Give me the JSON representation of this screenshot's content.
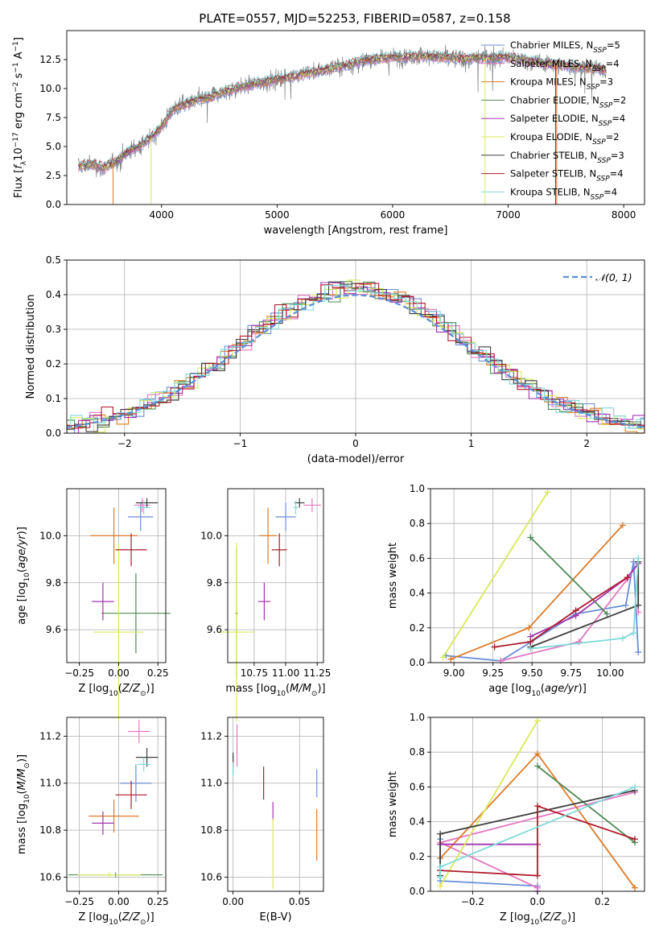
{
  "figure": {
    "title": "PLATE=0557, MJD=52253, FIBERID=0587, z=0.158"
  },
  "colors": {
    "Chabrier MILES": "#6a8fd6",
    "Salpeter MILES": "#e377c2",
    "Kroupa MILES": "#dd7a28",
    "Chabrier ELODIE": "#4e8a55",
    "Salpeter ELODIE": "#a335b0",
    "Kroupa ELODIE": "#d9e85a",
    "Chabrier STELIB": "#3f3f3f",
    "Salpeter STELIB": "#b0182a",
    "Kroupa STELIB": "#7fd9d9",
    "data_gray": "#7f7f7f",
    "normal_curve": "#5b8fd6",
    "grid": "#b0b0b0"
  },
  "chart_data": [
    {
      "id": "spectrum",
      "type": "line",
      "title": "PLATE=0557, MJD=52253, FIBERID=0587, z=0.158",
      "xlabel": "wavelength [Angstrom, rest frame]",
      "ylabel": "Flux [f_λ 10^-17 erg cm^-2 s^-1 A^-1]",
      "xlim": [
        3180,
        8180
      ],
      "ylim": [
        0,
        15
      ],
      "xticks": [
        4000,
        5000,
        6000,
        7000,
        8000
      ],
      "yticks": [
        0.0,
        2.5,
        5.0,
        7.5,
        10.0,
        12.5
      ],
      "ytick_labels": [
        "0.0",
        "2.5",
        "5.0",
        "7.5",
        "10.0",
        "12.5"
      ],
      "grid": false,
      "legend_position": "top-right",
      "continuum": {
        "x": [
          3300,
          3400,
          3500,
          3600,
          3700,
          3800,
          3900,
          4000,
          4100,
          4200,
          4300,
          4400,
          4600,
          4800,
          5000,
          5200,
          5500,
          5800,
          6000,
          6300,
          6600,
          7000,
          7300,
          7600,
          7850
        ],
        "y": [
          3.3,
          3.5,
          3.1,
          3.7,
          4.5,
          5.0,
          5.7,
          6.7,
          8.2,
          8.6,
          9.0,
          9.2,
          9.9,
          10.4,
          10.8,
          11.2,
          11.8,
          12.5,
          12.7,
          12.8,
          12.6,
          12.7,
          12.2,
          11.9,
          11.6
        ]
      },
      "legend": [
        {
          "name": "Chabrier MILES",
          "nssp": "5"
        },
        {
          "name": "Salpeter MILES",
          "nssp": "4"
        },
        {
          "name": "Kroupa MILES",
          "nssp": "3"
        },
        {
          "name": "Chabrier ELODIE",
          "nssp": "2"
        },
        {
          "name": "Salpeter ELODIE",
          "nssp": "4"
        },
        {
          "name": "Kroupa ELODIE",
          "nssp": "2"
        },
        {
          "name": "Chabrier STELIB",
          "nssp": "3"
        },
        {
          "name": "Salpeter STELIB",
          "nssp": "4"
        },
        {
          "name": "Kroupa STELIB",
          "nssp": "4"
        }
      ]
    },
    {
      "id": "residuals",
      "type": "histogram",
      "xlabel": "(data-model)/error",
      "ylabel": "Normed distribution",
      "xlim": [
        -2.5,
        2.5
      ],
      "ylim": [
        0,
        0.5
      ],
      "xticks": [
        -2,
        -1,
        0,
        1,
        2
      ],
      "xtick_labels": [
        "−2",
        "−1",
        "0",
        "1",
        "2"
      ],
      "yticks": [
        0.0,
        0.1,
        0.2,
        0.3,
        0.4,
        0.5
      ],
      "ytick_labels": [
        "0.0",
        "0.1",
        "0.2",
        "0.3",
        "0.4",
        "0.5"
      ],
      "grid": true,
      "bin_width": 0.1,
      "legend": [
        {
          "name": "𝒩(0, 1)"
        }
      ],
      "legend_position": "top-right"
    },
    {
      "id": "z-age",
      "type": "scatter",
      "xlabel": "Z [log10(Z/Z⊙)]",
      "ylabel": "age  [log10(age/yr)]",
      "xlim": [
        -0.33,
        0.3
      ],
      "ylim": [
        9.46,
        10.2
      ],
      "xticks": [
        -0.25,
        0.0,
        0.25
      ],
      "xtick_labels": [
        "−0.25",
        "0.00",
        "0.25"
      ],
      "yticks": [
        9.6,
        9.8,
        10.0
      ],
      "ytick_labels": [
        "9.6",
        "9.8",
        "10.0"
      ],
      "grid": true,
      "points": [
        {
          "series": "Chabrier MILES",
          "x": 0.14,
          "xerr": 0.08,
          "y": 10.08,
          "yerr": 0.06
        },
        {
          "series": "Salpeter MILES",
          "x": 0.15,
          "xerr": 0.05,
          "y": 10.13,
          "yerr": 0.03
        },
        {
          "series": "Kroupa MILES",
          "x": -0.03,
          "xerr": 0.15,
          "y": 10.0,
          "yerr": 0.12
        },
        {
          "series": "Chabrier ELODIE",
          "x": 0.11,
          "xerr": 0.22,
          "y": 9.67,
          "yerr": 0.17
        },
        {
          "series": "Salpeter ELODIE",
          "x": -0.1,
          "xerr": 0.07,
          "y": 9.72,
          "yerr": 0.08
        },
        {
          "series": "Kroupa ELODIE",
          "x": 0.0,
          "xerr": 0.16,
          "y": 9.59,
          "yerr": 0.38
        },
        {
          "series": "Chabrier STELIB",
          "x": 0.18,
          "xerr": 0.07,
          "y": 10.14,
          "yerr": 0.02
        },
        {
          "series": "Salpeter STELIB",
          "x": 0.08,
          "xerr": 0.1,
          "y": 9.94,
          "yerr": 0.07
        },
        {
          "series": "Kroupa STELIB",
          "x": 0.16,
          "xerr": 0.04,
          "y": 10.12,
          "yerr": 0.03
        }
      ]
    },
    {
      "id": "mass-age",
      "type": "scatter",
      "xlabel": "mass [log10(M/M⊙)]",
      "ylabel": "",
      "xlim": [
        10.54,
        11.3
      ],
      "ylim": [
        9.46,
        10.2
      ],
      "xticks": [
        10.75,
        11.0,
        11.25
      ],
      "xtick_labels": [
        "10.75",
        "11.00",
        "11.25"
      ],
      "yticks": [
        9.6,
        9.8,
        10.0
      ],
      "ytick_labels": [
        "9.6",
        "9.8",
        "10.0"
      ],
      "grid": true,
      "points": [
        {
          "series": "Chabrier MILES",
          "x": 11.0,
          "xerr": 0.08,
          "y": 10.08,
          "yerr": 0.06
        },
        {
          "series": "Salpeter MILES",
          "x": 11.21,
          "xerr": 0.07,
          "y": 10.13,
          "yerr": 0.03
        },
        {
          "series": "Kroupa MILES",
          "x": 10.86,
          "xerr": 0.07,
          "y": 10.0,
          "yerr": 0.12
        },
        {
          "series": "Chabrier ELODIE",
          "x": 10.61,
          "xerr": 0.01,
          "y": 9.67,
          "yerr": 0.28
        },
        {
          "series": "Salpeter ELODIE",
          "x": 10.83,
          "xerr": 0.05,
          "y": 9.72,
          "yerr": 0.08
        },
        {
          "series": "Kroupa ELODIE",
          "x": 10.61,
          "xerr": 0.14,
          "y": 9.59,
          "yerr": 0.38
        },
        {
          "series": "Chabrier STELIB",
          "x": 11.11,
          "xerr": 0.04,
          "y": 10.14,
          "yerr": 0.02
        },
        {
          "series": "Salpeter STELIB",
          "x": 10.95,
          "xerr": 0.06,
          "y": 9.94,
          "yerr": 0.07
        },
        {
          "series": "Kroupa STELIB",
          "x": 11.08,
          "xerr": 0.02,
          "y": 10.12,
          "yerr": 0.03
        }
      ]
    },
    {
      "id": "age-weight",
      "type": "line",
      "xlabel": "age  [log10(age/yr)]",
      "ylabel": "mass weight",
      "xlim": [
        8.85,
        10.22
      ],
      "ylim": [
        0,
        1
      ],
      "xticks": [
        9.0,
        9.25,
        9.5,
        9.75,
        10.0
      ],
      "xtick_labels": [
        "9.00",
        "9.25",
        "9.50",
        "9.75",
        "10.00"
      ],
      "yticks": [
        0.0,
        0.2,
        0.4,
        0.6,
        0.8,
        1.0
      ],
      "ytick_labels": [
        "0.0",
        "0.2",
        "0.4",
        "0.6",
        "0.8",
        "1.0"
      ],
      "grid": true,
      "series": [
        {
          "name": "Chabrier MILES",
          "x": [
            8.95,
            9.3,
            9.78,
            10.1,
            10.15,
            10.18
          ],
          "y": [
            0.04,
            0.01,
            0.28,
            0.33,
            0.58,
            0.06
          ]
        },
        {
          "name": "Salpeter MILES",
          "x": [
            9.3,
            9.8,
            10.11,
            10.18,
            10.18
          ],
          "y": [
            0.01,
            0.12,
            0.48,
            0.57,
            0.29
          ]
        },
        {
          "name": "Kroupa MILES",
          "x": [
            8.98,
            9.48,
            10.08
          ],
          "y": [
            0.02,
            0.2,
            0.79
          ]
        },
        {
          "name": "Chabrier ELODIE",
          "x": [
            9.49,
            9.98
          ],
          "y": [
            0.72,
            0.28
          ]
        },
        {
          "name": "Salpeter ELODIE",
          "x": [
            9.49,
            9.78,
            10.11,
            10.18
          ],
          "y": [
            0.15,
            0.27,
            0.49,
            0.57
          ]
        },
        {
          "name": "Kroupa ELODIE",
          "x": [
            8.93,
            9.6
          ],
          "y": [
            0.03,
            0.98
          ]
        },
        {
          "name": "Chabrier STELIB",
          "x": [
            9.49,
            10.18,
            10.18
          ],
          "y": [
            0.09,
            0.33,
            0.58
          ]
        },
        {
          "name": "Salpeter STELIB",
          "x": [
            9.26,
            9.49,
            9.78,
            10.11
          ],
          "y": [
            0.09,
            0.12,
            0.3,
            0.49
          ]
        },
        {
          "name": "Kroupa STELIB",
          "x": [
            9.49,
            10.08,
            10.15,
            10.18
          ],
          "y": [
            0.08,
            0.14,
            0.17,
            0.6
          ]
        }
      ]
    },
    {
      "id": "z-weight",
      "type": "line",
      "xlabel": "Z [log10(Z/Z⊙)]",
      "ylabel": "mass weight",
      "xlim": [
        -0.33,
        0.33
      ],
      "ylim": [
        0,
        1
      ],
      "xticks": [
        -0.2,
        0.0,
        0.2
      ],
      "xtick_labels": [
        "−0.2",
        "0.0",
        "0.2"
      ],
      "yticks": [
        0.0,
        0.2,
        0.4,
        0.6,
        0.8,
        1.0
      ],
      "ytick_labels": [
        "0.0",
        "0.2",
        "0.4",
        "0.6",
        "0.8",
        "1.0"
      ],
      "grid": true,
      "series": [
        {
          "name": "Chabrier MILES",
          "x": [
            -0.3,
            -0.3,
            0.0,
            0.0
          ],
          "y": [
            0.3,
            0.06,
            0.03,
            0.0
          ]
        },
        {
          "name": "Salpeter MILES",
          "x": [
            0.0,
            0.0,
            -0.3,
            0.3
          ],
          "y": [
            0.0,
            0.02,
            0.28,
            0.57
          ]
        },
        {
          "name": "Kroupa MILES",
          "x": [
            -0.3,
            0.0,
            0.3
          ],
          "y": [
            0.19,
            0.79,
            0.02
          ]
        },
        {
          "name": "Chabrier ELODIE",
          "x": [
            0.0,
            0.3
          ],
          "y": [
            0.72,
            0.28
          ]
        },
        {
          "name": "Salpeter ELODIE",
          "x": [
            -0.3,
            0.0
          ],
          "y": [
            0.27,
            0.27
          ]
        },
        {
          "name": "Kroupa ELODIE",
          "x": [
            -0.3,
            0.0
          ],
          "y": [
            0.03,
            0.98
          ]
        },
        {
          "name": "Chabrier STELIB",
          "x": [
            -0.3,
            -0.3,
            0.3
          ],
          "y": [
            0.09,
            0.33,
            0.58
          ]
        },
        {
          "name": "Salpeter STELIB",
          "x": [
            -0.3,
            0.0,
            0.0,
            0.3
          ],
          "y": [
            0.12,
            0.09,
            0.49,
            0.3
          ]
        },
        {
          "name": "Kroupa STELIB",
          "x": [
            -0.3,
            -0.3,
            0.3
          ],
          "y": [
            0.08,
            0.14,
            0.6
          ]
        }
      ]
    },
    {
      "id": "z-mass",
      "type": "scatter",
      "xlabel": "Z [log10(Z/Z⊙)]",
      "ylabel": "mass [log10(M/M⊙)]",
      "xlim": [
        -0.33,
        0.3
      ],
      "ylim": [
        10.54,
        11.28
      ],
      "xticks": [
        -0.25,
        0.0,
        0.25
      ],
      "xtick_labels": [
        "−0.25",
        "0.00",
        "0.25"
      ],
      "yticks": [
        10.6,
        10.8,
        11.0,
        11.2
      ],
      "ytick_labels": [
        "10.6",
        "10.8",
        "11.0",
        "11.2"
      ],
      "grid": true,
      "points": [
        {
          "series": "Chabrier MILES",
          "x": 0.11,
          "xerr": 0.1,
          "y": 11.0,
          "yerr": 0.08
        },
        {
          "series": "Salpeter MILES",
          "x": 0.13,
          "xerr": 0.07,
          "y": 11.22,
          "yerr": 0.05
        },
        {
          "series": "Kroupa MILES",
          "x": -0.03,
          "xerr": 0.16,
          "y": 10.86,
          "yerr": 0.07
        },
        {
          "series": "Chabrier ELODIE",
          "x": -0.02,
          "xerr": 0.3,
          "y": 10.61,
          "yerr": 0.01
        },
        {
          "series": "Salpeter ELODIE",
          "x": -0.1,
          "xerr": 0.07,
          "y": 10.83,
          "yerr": 0.05
        },
        {
          "series": "Kroupa ELODIE",
          "x": -0.06,
          "xerr": 0.2,
          "y": 10.61,
          "yerr": 0.01
        },
        {
          "series": "Chabrier STELIB",
          "x": 0.18,
          "xerr": 0.07,
          "y": 11.11,
          "yerr": 0.04
        },
        {
          "series": "Salpeter STELIB",
          "x": 0.08,
          "xerr": 0.1,
          "y": 10.95,
          "yerr": 0.06
        },
        {
          "series": "Kroupa STELIB",
          "x": 0.16,
          "xerr": 0.04,
          "y": 11.08,
          "yerr": 0.03
        }
      ]
    },
    {
      "id": "ebv-mass",
      "type": "scatter",
      "xlabel": "E(B-V)",
      "ylabel": "",
      "xlim": [
        -0.004,
        0.068
      ],
      "ylim": [
        10.54,
        11.28
      ],
      "xticks": [
        0.0,
        0.05
      ],
      "xtick_labels": [
        "0.00",
        "0.05"
      ],
      "yticks": [
        10.6,
        10.8,
        11.0,
        11.2
      ],
      "ytick_labels": [
        "10.6",
        "10.8",
        "11.0",
        "11.2"
      ],
      "grid": true,
      "points": [
        {
          "series": "Chabrier MILES",
          "x": 0.063,
          "xerr": 0.0,
          "y": 11.0,
          "yerr": 0.06
        },
        {
          "series": "Salpeter MILES",
          "x": 0.003,
          "xerr": 0.0,
          "y": 11.16,
          "yerr": 0.09
        },
        {
          "series": "Kroupa MILES",
          "x": 0.063,
          "xerr": 0.0,
          "y": 10.78,
          "yerr": 0.11
        },
        {
          "series": "Chabrier ELODIE",
          "x": 0.0,
          "xerr": 0.0,
          "y": 11.08,
          "yerr": 0.04
        },
        {
          "series": "Salpeter ELODIE",
          "x": 0.03,
          "xerr": 0.0,
          "y": 10.88,
          "yerr": 0.04
        },
        {
          "series": "Kroupa ELODIE",
          "x": 0.03,
          "xerr": 0.0,
          "y": 10.7,
          "yerr": 0.15
        },
        {
          "series": "Chabrier STELIB",
          "x": 0.0,
          "xerr": 0.0,
          "y": 11.1,
          "yerr": 0.03
        },
        {
          "series": "Salpeter STELIB",
          "x": 0.023,
          "xerr": 0.0,
          "y": 11.0,
          "yerr": 0.07
        },
        {
          "series": "Kroupa STELIB",
          "x": 0.0,
          "xerr": 0.0,
          "y": 11.06,
          "yerr": 0.03
        }
      ]
    }
  ]
}
